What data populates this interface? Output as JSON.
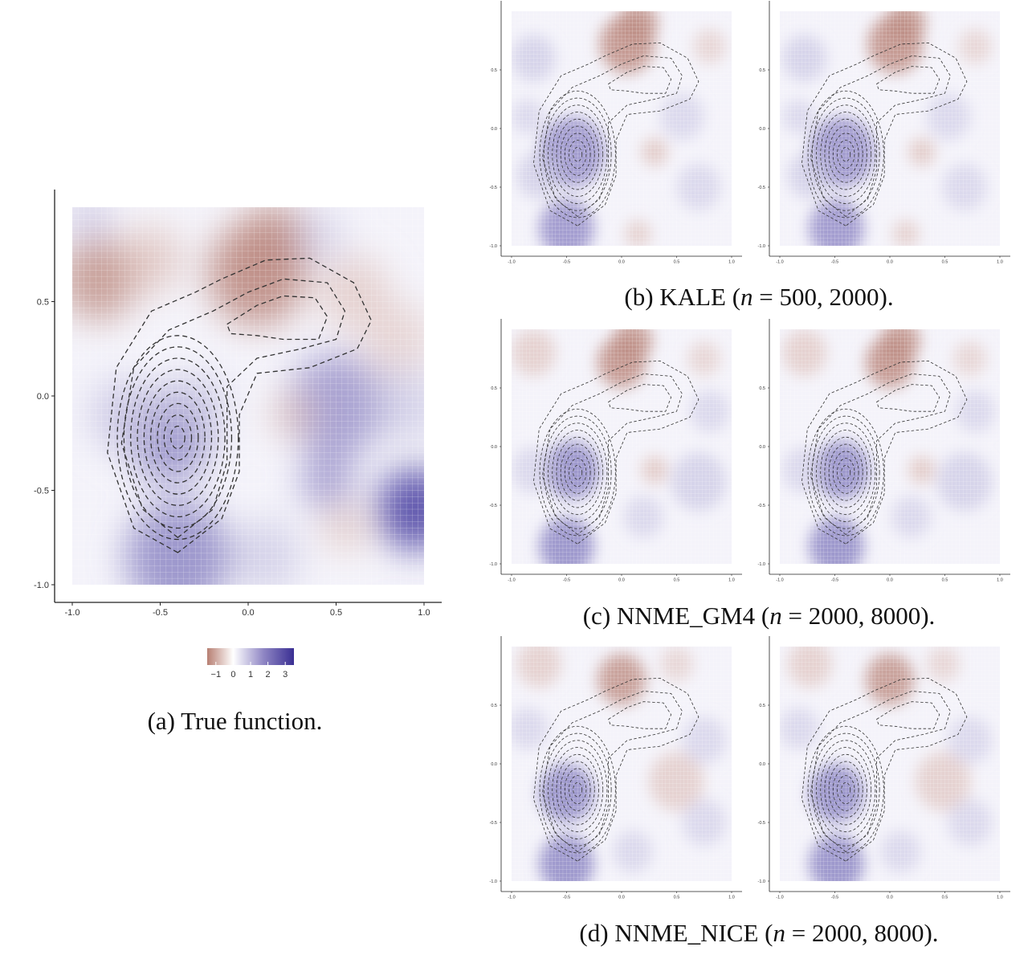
{
  "chart_data": [
    {
      "type": "heatmap",
      "panel": "a",
      "caption": "(a) True function.",
      "xlim": [
        -1.0,
        1.0
      ],
      "ylim": [
        -1.0,
        1.0
      ],
      "x_ticks": [
        "-1.0",
        "-0.5",
        "0.0",
        "0.5",
        "1.0"
      ],
      "y_ticks": [
        "-1.0",
        "-0.5",
        "0.0",
        "0.5"
      ],
      "grid": false,
      "colorbar": {
        "ticks": [
          "−1",
          "0",
          "1",
          "2",
          "3"
        ],
        "range": [
          -1.5,
          3.5
        ],
        "low_color": "#b77f72",
        "mid_color": "#ffffff",
        "high_color": "#3a2f93"
      },
      "overlay": "dashed density contours"
    },
    {
      "type": "heatmap",
      "panel": "b",
      "caption": "(b) KALE (n = 500, 2000).",
      "caption_parts": {
        "prefix": "(b) KALE (",
        "var": "n",
        "eq": " = ",
        "values": "500, 2000",
        "suffix": ")."
      },
      "subplots": 2,
      "x_ticks": [
        "-1.0",
        "-0.5",
        "0.0",
        "0.5",
        "1.0"
      ],
      "y_ticks": [
        "-1.0",
        "-0.5",
        "0.0",
        "0.5"
      ]
    },
    {
      "type": "heatmap",
      "panel": "c",
      "caption": "(c) NNME_GM4 (n = 2000, 8000).",
      "caption_parts": {
        "prefix": "(c) NNME_GM4 (",
        "var": "n",
        "eq": " = ",
        "values": "2000, 8000",
        "suffix": ")."
      },
      "subplots": 2,
      "x_ticks": [
        "-1.0",
        "-0.5",
        "0.0",
        "0.5",
        "1.0"
      ],
      "y_ticks": [
        "-1.0",
        "-0.5",
        "0.0",
        "0.5"
      ]
    },
    {
      "type": "heatmap",
      "panel": "d",
      "caption": "(d) NNME_NICE (n = 2000, 8000).",
      "caption_parts": {
        "prefix": "(d) NNME_NICE (",
        "var": "n",
        "eq": " = ",
        "values": "2000, 8000",
        "suffix": ")."
      },
      "subplots": 2,
      "x_ticks": [
        "-1.0",
        "-0.5",
        "0.0",
        "0.5",
        "1.0"
      ],
      "y_ticks": [
        "-1.0",
        "-0.5",
        "0.0",
        "0.5"
      ]
    }
  ]
}
